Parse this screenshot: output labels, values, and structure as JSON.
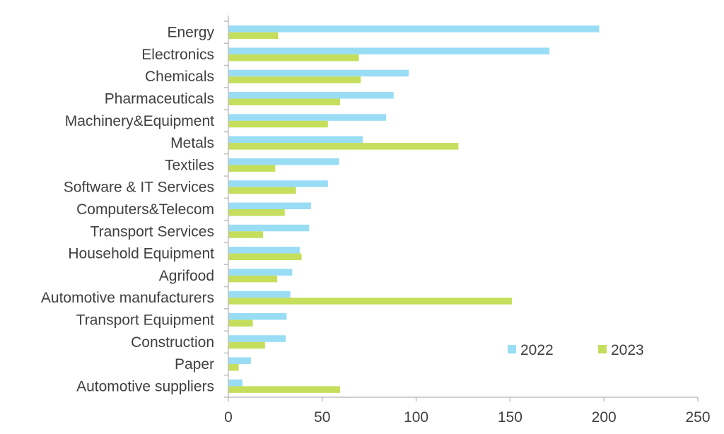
{
  "chart_data": {
    "type": "bar",
    "orientation": "horizontal",
    "categories": [
      "Energy",
      "Electronics",
      "Chemicals",
      "Pharmaceuticals",
      "Machinery&Equipment",
      "Metals",
      "Textiles",
      "Software & IT Services",
      "Computers&Telecom",
      "Transport Services",
      "Household Equipment",
      "Agrifood",
      "Automotive manufacturers",
      "Transport Equipment",
      "Construction",
      "Paper",
      "Automotive suppliers"
    ],
    "series": [
      {
        "name": "2022",
        "color": "#99DDF5",
        "values": [
          197.5,
          171,
          96,
          88,
          84,
          71.5,
          59,
          53,
          44,
          43,
          38,
          34,
          33,
          31,
          30.5,
          12,
          7.5
        ]
      },
      {
        "name": "2023",
        "color": "#C5DE5C",
        "values": [
          26.5,
          69.5,
          70.5,
          59.5,
          53,
          122.5,
          25,
          36,
          30,
          18.5,
          39,
          26,
          151,
          13,
          19.5,
          5.5,
          59.5
        ]
      }
    ],
    "xlim": [
      0,
      250
    ],
    "xticks": [
      0,
      50,
      100,
      150,
      200,
      250
    ],
    "grid": false,
    "legend_position": "bottom-right"
  }
}
